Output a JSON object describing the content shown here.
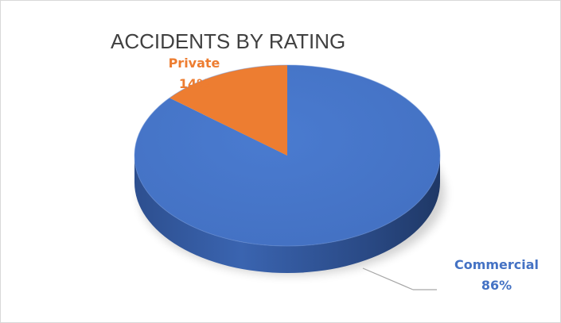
{
  "chart_data": {
    "type": "pie",
    "title": "ACCIDENTS BY RATING",
    "categories": [
      "Private",
      "Commercial"
    ],
    "values": [
      14,
      86
    ],
    "labels": [
      "14%",
      "86%"
    ],
    "colors": {
      "Private": "#ed7d31",
      "Commercial": "#4472c4"
    },
    "legend": "none",
    "style": "3d"
  }
}
